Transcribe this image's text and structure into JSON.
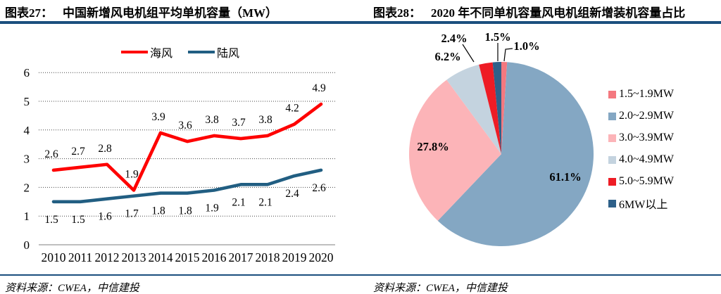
{
  "theme": {
    "rule_color": "#1B4F7E",
    "text_color": "#000000",
    "grid_color": "#444444",
    "baseline_color": "#999999"
  },
  "left_panel": {
    "figure_label": "图表27：",
    "figure_title": "中国新增风电机组平均单机容量（MW）"
  },
  "right_panel": {
    "figure_label": "图表28：",
    "figure_title": "2020 年不同单机容量风电机组新增装机容量占比"
  },
  "footer": {
    "left_source": "资料来源：CWEA，中信建投",
    "right_source": "资料来源：CWEA，中信建投"
  },
  "chart_data": [
    {
      "type": "line",
      "title": "中国新增风电机组平均单机容量（MW）",
      "categories": [
        "2010",
        "2011",
        "2012",
        "2013",
        "2014",
        "2015",
        "2016",
        "2017",
        "2018",
        "2019",
        "2020"
      ],
      "series": [
        {
          "name": "海风",
          "color": "#FE0000",
          "values": [
            2.6,
            2.7,
            2.8,
            1.9,
            3.9,
            3.6,
            3.8,
            3.7,
            3.8,
            4.2,
            4.9
          ]
        },
        {
          "name": "陆风",
          "color": "#215E82",
          "values": [
            1.5,
            1.5,
            1.6,
            1.7,
            1.8,
            1.8,
            1.9,
            2.1,
            2.1,
            2.4,
            2.6
          ]
        }
      ],
      "xlabel": "",
      "ylabel": "",
      "ylim": [
        0,
        6
      ],
      "yticks": [
        0,
        1,
        2,
        3,
        4,
        5,
        6
      ],
      "grid": "horizontal-dotted",
      "legend_position": "top",
      "data_labels": "on"
    },
    {
      "type": "pie",
      "title": "2020 年不同单机容量风电机组新增装机容量占比",
      "slices": [
        {
          "label": "1.5~1.9MW",
          "value": 1.0,
          "color": "#F4787F"
        },
        {
          "label": "2.0~2.9MW",
          "value": 61.1,
          "color": "#84A7C3"
        },
        {
          "label": "3.0~3.9MW",
          "value": 27.8,
          "color": "#FCB4B8"
        },
        {
          "label": "4.0~4.9MW",
          "value": 6.2,
          "color": "#C4D3DF"
        },
        {
          "label": "5.0~5.9MW",
          "value": 2.4,
          "color": "#EE1C25"
        },
        {
          "label": "6MW以上",
          "value": 1.5,
          "color": "#2E6089"
        }
      ],
      "start_angle": "12-oclock",
      "direction": "clockwise",
      "label_format": "percent-1-decimal",
      "legend_position": "right"
    }
  ]
}
